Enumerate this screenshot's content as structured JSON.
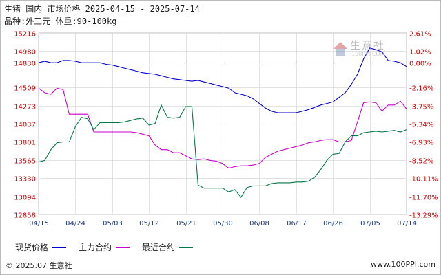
{
  "header": {
    "line1": "生猪 国内 市场价格 2025-04-15 - 2025-07-14",
    "line2": "品种:外三元 体重:90-100kg"
  },
  "watermark": {
    "brand": "生意社",
    "url": "100PPI.COM"
  },
  "legend": [
    {
      "label": "现货价格",
      "color": "#0000cc"
    },
    {
      "label": "主力合约",
      "color": "#cc00cc"
    },
    {
      "label": "最近合约",
      "color": "#007744"
    }
  ],
  "footer": {
    "copyright": "© 2025.07 生意社",
    "site": "www.100PPI.com"
  },
  "chart_data": {
    "type": "line",
    "x": [
      "04/15",
      "04/16",
      "04/17",
      "04/18",
      "04/21",
      "04/22",
      "04/23",
      "04/24",
      "04/25",
      "04/28",
      "04/29",
      "04/30",
      "05/06",
      "05/07",
      "05/08",
      "05/09",
      "05/12",
      "05/13",
      "05/14",
      "05/15",
      "05/16",
      "05/19",
      "05/20",
      "05/21",
      "05/22",
      "05/23",
      "05/26",
      "05/27",
      "05/28",
      "05/29",
      "05/30",
      "06/03",
      "06/04",
      "06/05",
      "06/06",
      "06/09",
      "06/10",
      "06/11",
      "06/12",
      "06/13",
      "06/16",
      "06/17",
      "06/18",
      "06/19",
      "06/20",
      "06/23",
      "06/24",
      "06/25",
      "06/26",
      "06/27",
      "06/30",
      "07/01",
      "07/02",
      "07/03",
      "07/04",
      "07/07",
      "07/08",
      "07/09",
      "07/10",
      "07/11",
      "07/14"
    ],
    "xtick_labels": [
      "04/15",
      "04/24",
      "05/03",
      "05/12",
      "05/21",
      "05/30",
      "06/08",
      "06/17",
      "06/26",
      "07/05",
      "07/14"
    ],
    "ylim": [
      12858,
      15216
    ],
    "left_ticks": [
      15216,
      14980,
      14830,
      14509,
      14273,
      14037,
      13801,
      13565,
      13330,
      13094,
      12858
    ],
    "right_ticks": [
      "2.61%",
      "1.02%",
      "0.00%",
      "-2.16%",
      "-3.75%",
      "-5.34%",
      "-6.93%",
      "-8.52%",
      "-10.11%",
      "-11.70%",
      "-13.29%"
    ],
    "baseline": 14830,
    "grid": true,
    "series": [
      {
        "name": "现货价格",
        "color": "#0000cc",
        "values": [
          14830,
          14850,
          14830,
          14830,
          14860,
          14860,
          14850,
          14830,
          14830,
          14830,
          14830,
          14810,
          14800,
          14780,
          14760,
          14740,
          14720,
          14700,
          14690,
          14680,
          14660,
          14640,
          14620,
          14610,
          14600,
          14590,
          14600,
          14580,
          14560,
          14540,
          14520,
          14500,
          14440,
          14420,
          14400,
          14360,
          14300,
          14240,
          14200,
          14180,
          14180,
          14180,
          14180,
          14200,
          14220,
          14250,
          14280,
          14300,
          14320,
          14380,
          14440,
          14550,
          14680,
          14880,
          15020,
          15000,
          14970,
          14860,
          14850,
          14830,
          14780
        ]
      },
      {
        "name": "主力合约",
        "color": "#cc00cc",
        "values": [
          14500,
          14440,
          14420,
          14500,
          14480,
          14160,
          14160,
          14160,
          14160,
          13930,
          13930,
          13930,
          13930,
          13930,
          13930,
          13930,
          13920,
          13900,
          13880,
          13760,
          13700,
          13700,
          13660,
          13660,
          13620,
          13580,
          13570,
          13580,
          13560,
          13550,
          13520,
          13460,
          13480,
          13490,
          13490,
          13500,
          13520,
          13600,
          13640,
          13680,
          13700,
          13720,
          13740,
          13760,
          13790,
          13800,
          13820,
          13830,
          13830,
          13800,
          13800,
          13820,
          14060,
          14310,
          14320,
          14310,
          14200,
          14280,
          14280,
          14330,
          14230
        ]
      },
      {
        "name": "最近合约",
        "color": "#007744",
        "values": [
          13540,
          13560,
          13700,
          13790,
          13800,
          13800,
          14000,
          14120,
          14100,
          13960,
          14050,
          14050,
          14050,
          14050,
          14060,
          14080,
          14100,
          14110,
          14020,
          14040,
          14280,
          14120,
          14110,
          14120,
          14260,
          14260,
          13240,
          13200,
          13200,
          13200,
          13200,
          13150,
          13180,
          13080,
          13210,
          13230,
          13230,
          13230,
          13260,
          13270,
          13270,
          13270,
          13280,
          13280,
          13290,
          13340,
          13440,
          13560,
          13640,
          13650,
          13800,
          13880,
          13880,
          13920,
          13930,
          13940,
          13930,
          13940,
          13950,
          13930,
          13960
        ]
      }
    ]
  }
}
